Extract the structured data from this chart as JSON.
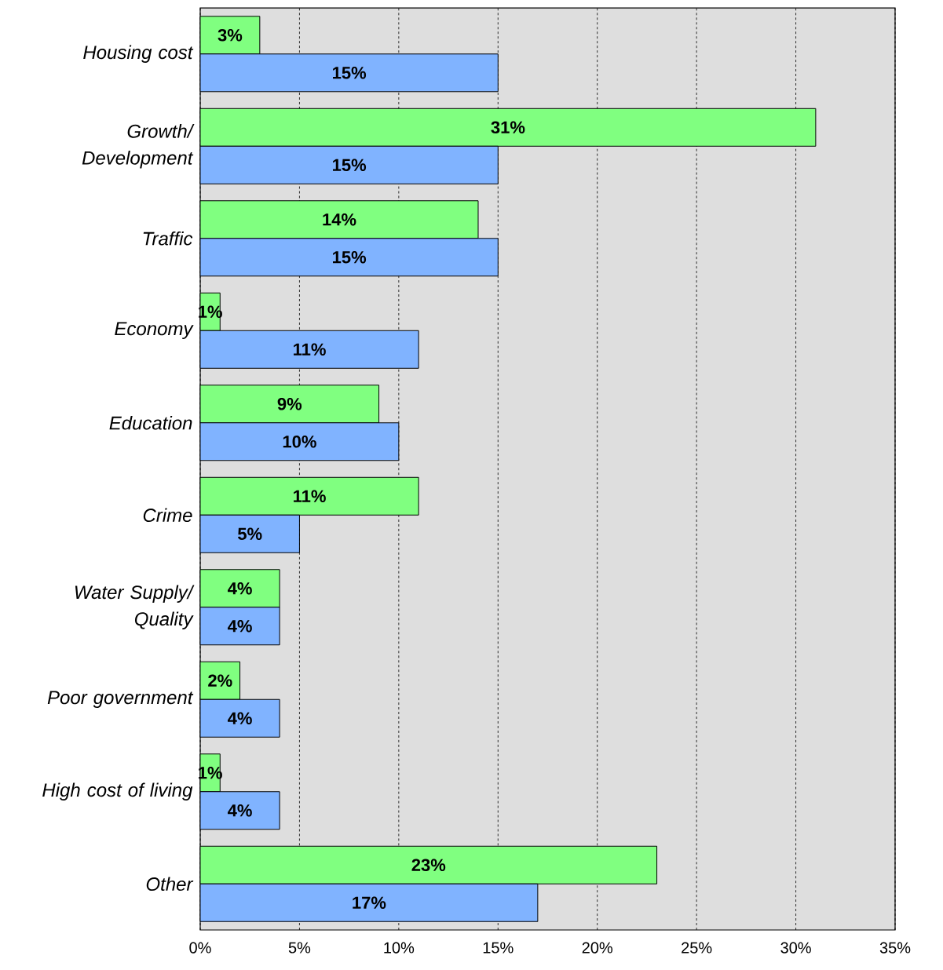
{
  "chart_data": {
    "type": "bar",
    "orientation": "horizontal",
    "categories": [
      "Housing cost",
      "Growth/ Development",
      "Traffic",
      "Economy",
      "Education",
      "Crime",
      "Water Supply/ Quality",
      "Poor government",
      "High cost of living",
      "Other"
    ],
    "series": [
      {
        "color": "#80ff80",
        "values": [
          3,
          31,
          14,
          1,
          9,
          11,
          4,
          2,
          1,
          23
        ],
        "value_labels": [
          "3%",
          "31%",
          "14%",
          "1%",
          "9%",
          "11%",
          "4%",
          "2%",
          "1%",
          "23%"
        ]
      },
      {
        "color": "#80b3ff",
        "values": [
          15,
          15,
          15,
          11,
          10,
          5,
          4,
          4,
          4,
          17
        ],
        "value_labels": [
          "15%",
          "15%",
          "15%",
          "11%",
          "10%",
          "5%",
          "4%",
          "4%",
          "4%",
          "17%"
        ]
      }
    ],
    "xlim": [
      0,
      35
    ],
    "xticks": [
      {
        "value": 0,
        "label": "0%"
      },
      {
        "value": 5,
        "label": "5%"
      },
      {
        "value": 10,
        "label": "10%"
      },
      {
        "value": 15,
        "label": "15%"
      },
      {
        "value": 20,
        "label": "20%"
      },
      {
        "value": 25,
        "label": "25%"
      },
      {
        "value": 30,
        "label": "30%"
      },
      {
        "value": 35,
        "label": "35%"
      }
    ],
    "grid": "x"
  }
}
